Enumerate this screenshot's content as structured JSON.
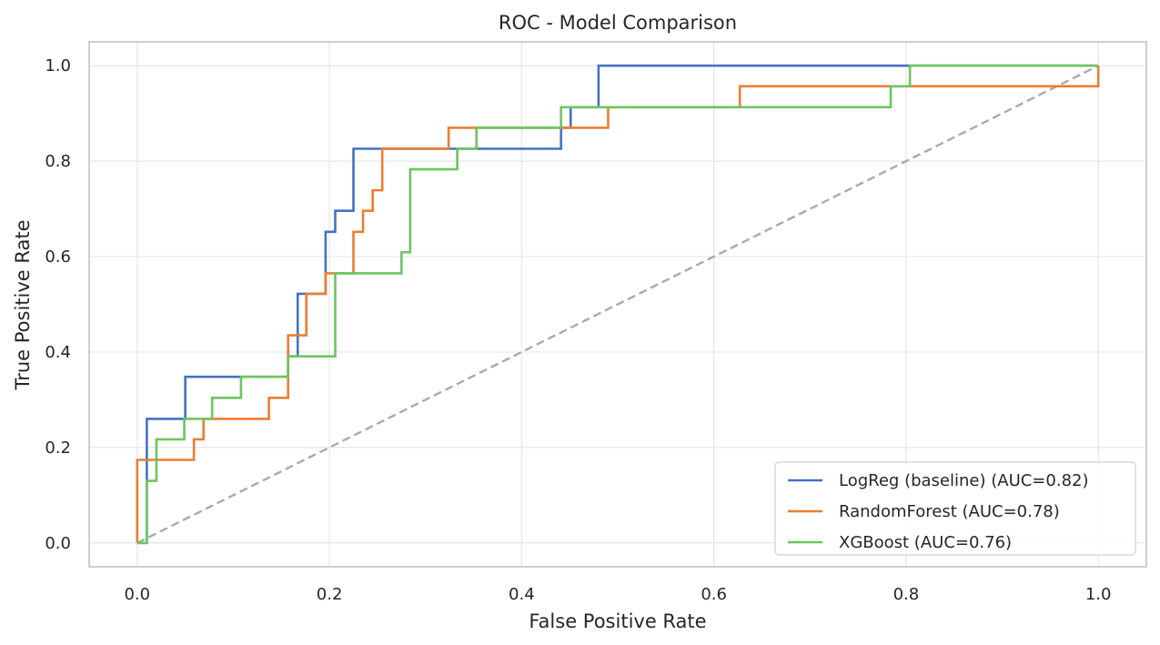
{
  "chart_data": {
    "type": "line",
    "title": "ROC - Model Comparison",
    "xlabel": "False Positive Rate",
    "ylabel": "True Positive Rate",
    "xlim": [
      -0.05,
      1.05
    ],
    "ylim": [
      -0.05,
      1.05
    ],
    "x_ticks": [
      "0.0",
      "0.2",
      "0.4",
      "0.6",
      "0.8",
      "1.0"
    ],
    "y_ticks": [
      "0.0",
      "0.2",
      "0.4",
      "0.6",
      "0.8",
      "1.0"
    ],
    "grid": true,
    "legend_position": "bottom-right",
    "series": [
      {
        "name": "LogReg (baseline) (AUC=0.82)",
        "color": "#4472c4",
        "x": [
          0.0,
          0.01,
          0.01,
          0.05,
          0.05,
          0.157,
          0.157,
          0.167,
          0.167,
          0.196,
          0.196,
          0.206,
          0.206,
          0.225,
          0.225,
          0.441,
          0.441,
          0.451,
          0.451,
          0.48,
          0.48,
          1.0
        ],
        "y": [
          0.0,
          0.0,
          0.26,
          0.26,
          0.348,
          0.348,
          0.391,
          0.391,
          0.522,
          0.522,
          0.652,
          0.652,
          0.696,
          0.696,
          0.826,
          0.826,
          0.87,
          0.87,
          0.913,
          0.913,
          1.0,
          1.0
        ]
      },
      {
        "name": "RandomForest (AUC=0.78)",
        "color": "#ed7d31",
        "x": [
          0.0,
          0.0,
          0.059,
          0.059,
          0.069,
          0.069,
          0.137,
          0.137,
          0.157,
          0.157,
          0.167,
          0.167,
          0.176,
          0.176,
          0.196,
          0.196,
          0.225,
          0.225,
          0.235,
          0.235,
          0.245,
          0.245,
          0.255,
          0.255,
          0.324,
          0.324,
          0.49,
          0.49,
          0.627,
          0.627,
          1.0,
          1.0
        ],
        "y": [
          0.0,
          0.174,
          0.174,
          0.217,
          0.217,
          0.26,
          0.26,
          0.304,
          0.304,
          0.435,
          0.435,
          0.435,
          0.435,
          0.522,
          0.522,
          0.565,
          0.565,
          0.652,
          0.652,
          0.696,
          0.696,
          0.739,
          0.739,
          0.826,
          0.826,
          0.87,
          0.87,
          0.913,
          0.913,
          0.957,
          0.957,
          1.0
        ]
      },
      {
        "name": "XGBoost (AUC=0.76)",
        "color": "#6cc65f",
        "x": [
          0.0,
          0.01,
          0.01,
          0.02,
          0.02,
          0.049,
          0.049,
          0.078,
          0.078,
          0.108,
          0.108,
          0.157,
          0.157,
          0.206,
          0.206,
          0.275,
          0.275,
          0.284,
          0.284,
          0.333,
          0.333,
          0.353,
          0.353,
          0.441,
          0.441,
          0.784,
          0.784,
          0.804,
          0.804,
          1.0
        ],
        "y": [
          0.0,
          0.0,
          0.13,
          0.13,
          0.217,
          0.217,
          0.26,
          0.26,
          0.304,
          0.304,
          0.348,
          0.348,
          0.391,
          0.391,
          0.565,
          0.565,
          0.609,
          0.609,
          0.783,
          0.783,
          0.826,
          0.826,
          0.87,
          0.87,
          0.913,
          0.913,
          0.957,
          0.957,
          1.0,
          1.0
        ]
      }
    ],
    "reference_line": {
      "x": [
        0.0,
        1.0
      ],
      "y": [
        0.0,
        1.0
      ],
      "color": "#aaaaaa",
      "style": "dashed"
    }
  }
}
